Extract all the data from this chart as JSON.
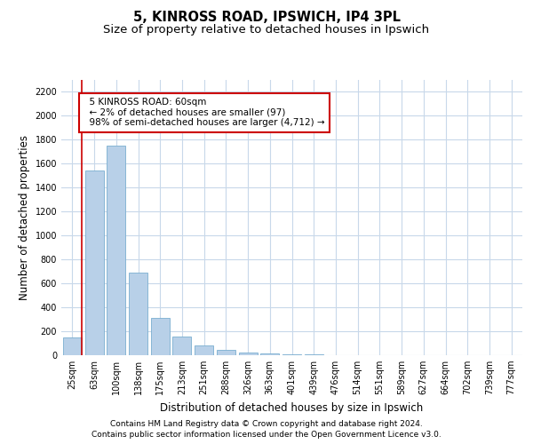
{
  "title_line1": "5, KINROSS ROAD, IPSWICH, IP4 3PL",
  "title_line2": "Size of property relative to detached houses in Ipswich",
  "xlabel": "Distribution of detached houses by size in Ipswich",
  "ylabel": "Number of detached properties",
  "categories": [
    "25sqm",
    "63sqm",
    "100sqm",
    "138sqm",
    "175sqm",
    "213sqm",
    "251sqm",
    "288sqm",
    "326sqm",
    "363sqm",
    "401sqm",
    "439sqm",
    "476sqm",
    "514sqm",
    "551sqm",
    "589sqm",
    "627sqm",
    "664sqm",
    "702sqm",
    "739sqm",
    "777sqm"
  ],
  "values": [
    150,
    1540,
    1750,
    690,
    310,
    155,
    80,
    45,
    25,
    18,
    10,
    5,
    3,
    2,
    1,
    0,
    0,
    0,
    0,
    0,
    0
  ],
  "bar_color": "#b8d0e8",
  "bar_edge_color": "#7aaed0",
  "grid_color": "#c8d8ea",
  "background_color": "#ffffff",
  "annotation_line1": "  5 KINROSS ROAD: 60sqm",
  "annotation_line2": "  ← 2% of detached houses are smaller (97)",
  "annotation_line3": "  98% of semi-detached houses are larger (4,712) →",
  "annotation_box_color": "#ffffff",
  "annotation_box_edge_color": "#cc0000",
  "vline_color": "#cc0000",
  "ylim": [
    0,
    2300
  ],
  "yticks": [
    0,
    200,
    400,
    600,
    800,
    1000,
    1200,
    1400,
    1600,
    1800,
    2000,
    2200
  ],
  "title_fontsize": 10.5,
  "subtitle_fontsize": 9.5,
  "axis_label_fontsize": 8.5,
  "tick_fontsize": 7,
  "annotation_fontsize": 7.5,
  "footer_fontsize": 6.5,
  "footer_line1": "Contains HM Land Registry data © Crown copyright and database right 2024.",
  "footer_line2": "Contains public sector information licensed under the Open Government Licence v3.0."
}
